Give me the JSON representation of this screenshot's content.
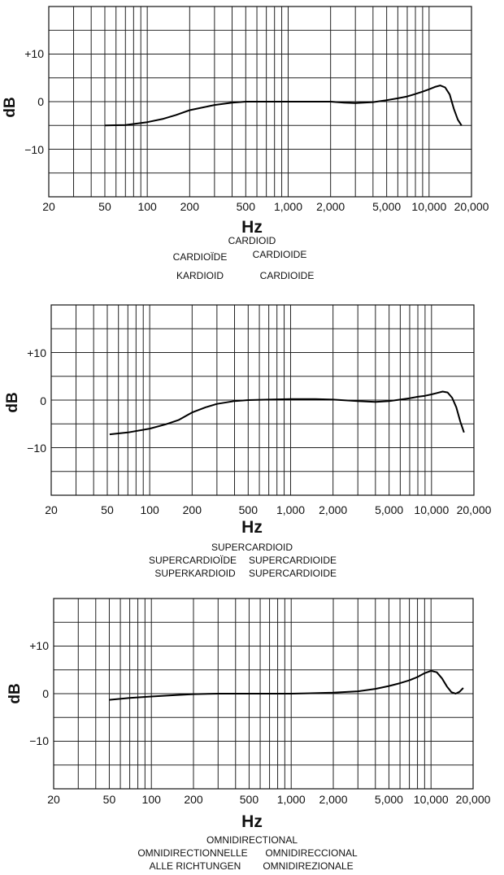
{
  "chart_data": [
    {
      "type": "line",
      "xscale": "log",
      "xlim": [
        20,
        20000
      ],
      "ylim": [
        -20,
        20
      ],
      "ylabel": "dB",
      "xlabel": "Hz",
      "yticks": [
        "+10",
        "0",
        "−10"
      ],
      "xticks": [
        "20",
        "50",
        "100",
        "200",
        "500",
        "1,000",
        "2,000",
        "5,000",
        "10,000",
        "20,000"
      ],
      "captions": [
        "CARDIOID",
        "CARDIOÏDE",
        "CARDIOIDE",
        "KARDIOID",
        "CARDIOIDE"
      ],
      "x": [
        50,
        70,
        100,
        130,
        160,
        200,
        250,
        300,
        400,
        500,
        700,
        1000,
        1500,
        2000,
        2500,
        3000,
        4000,
        5000,
        6000,
        7000,
        8000,
        9000,
        10000,
        11000,
        12000,
        13000,
        14000,
        15000,
        16000,
        17000
      ],
      "y": [
        -5,
        -4.9,
        -4.3,
        -3.6,
        -2.8,
        -1.8,
        -1.2,
        -0.7,
        -0.2,
        0,
        0,
        0,
        0,
        0,
        -0.2,
        -0.3,
        -0.1,
        0.3,
        0.7,
        1.1,
        1.6,
        2.1,
        2.6,
        3.1,
        3.4,
        3.0,
        1.5,
        -1.5,
        -3.8,
        -5.0
      ]
    },
    {
      "type": "line",
      "xscale": "log",
      "xlim": [
        20,
        20000
      ],
      "ylim": [
        -20,
        20
      ],
      "ylabel": "dB",
      "xlabel": "Hz",
      "yticks": [
        "+10",
        "0",
        "−10"
      ],
      "xticks": [
        "20",
        "50",
        "100",
        "200",
        "500",
        "1,000",
        "2,000",
        "5,000",
        "10,000",
        "20,000"
      ],
      "captions": [
        "SUPERCARDIOID",
        "SUPERCARDIOÏDE",
        "SUPERCARDIOIDE",
        "SUPERKARDIOID",
        "SUPERCARDIOIDE"
      ],
      "x": [
        52,
        70,
        100,
        130,
        160,
        200,
        250,
        300,
        400,
        500,
        700,
        1000,
        1500,
        2000,
        3000,
        4000,
        5000,
        6000,
        7000,
        8000,
        9000,
        10000,
        11000,
        12000,
        13000,
        14000,
        15000,
        16000,
        17000
      ],
      "y": [
        -7.2,
        -6.8,
        -6,
        -5.1,
        -4.2,
        -2.6,
        -1.5,
        -0.8,
        -0.2,
        0,
        0.1,
        0.2,
        0.2,
        0.1,
        -0.2,
        -0.4,
        -0.2,
        0.1,
        0.4,
        0.7,
        0.9,
        1.2,
        1.5,
        1.8,
        1.6,
        0.5,
        -1.5,
        -4.5,
        -6.8
      ]
    },
    {
      "type": "line",
      "xscale": "log",
      "xlim": [
        20,
        20000
      ],
      "ylim": [
        -20,
        20
      ],
      "ylabel": "dB",
      "xlabel": "Hz",
      "yticks": [
        "+10",
        "0",
        "−10"
      ],
      "xticks": [
        "20",
        "50",
        "100",
        "200",
        "500",
        "1,000",
        "2,000",
        "5,000",
        "10,000",
        "20,000"
      ],
      "captions": [
        "OMNIDIRECTIONAL",
        "OMNIDIRECTIONNELLE",
        "OMNIDIRECCIONAL",
        "ALLE RICHTUNGEN",
        "OMNIDIREZIONALE"
      ],
      "x": [
        50,
        70,
        100,
        150,
        200,
        300,
        500,
        1000,
        2000,
        3000,
        4000,
        5000,
        6000,
        7000,
        8000,
        9000,
        10000,
        11000,
        12000,
        13000,
        14000,
        15000,
        16000,
        17000
      ],
      "y": [
        -1.3,
        -0.9,
        -0.6,
        -0.3,
        -0.1,
        0,
        0,
        0,
        0.2,
        0.5,
        1,
        1.6,
        2.2,
        2.8,
        3.5,
        4.3,
        4.8,
        4.5,
        3.2,
        1.5,
        0.3,
        0,
        0.4,
        1.2
      ]
    }
  ]
}
